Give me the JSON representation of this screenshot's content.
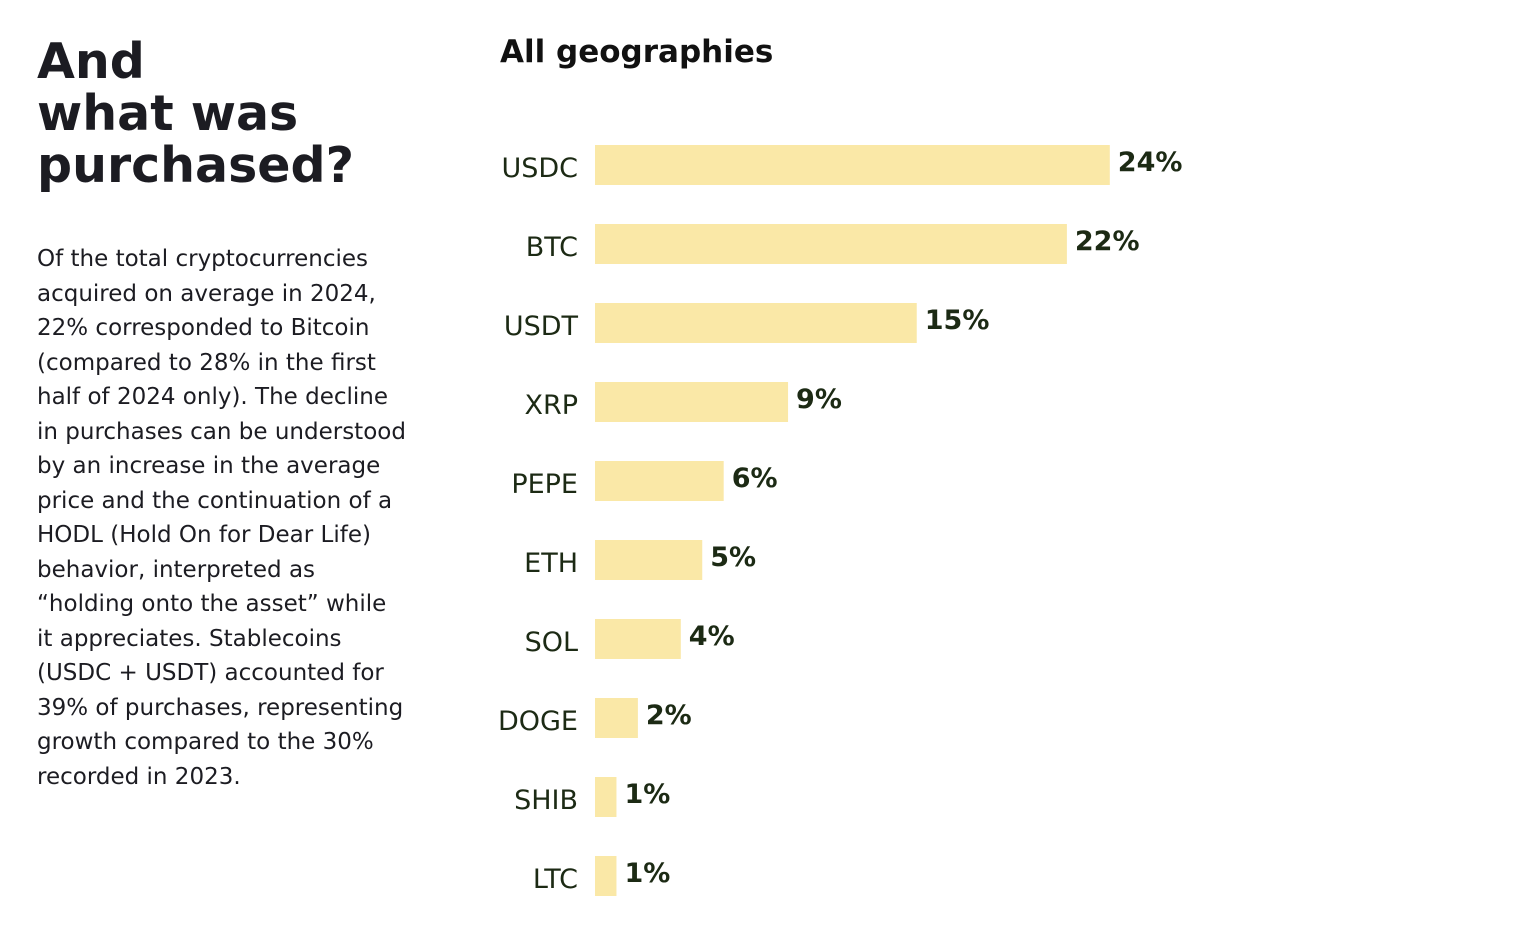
{
  "intro": {
    "heading": "And\nwhat was\npurchased?",
    "body": "Of the total cryptocurrencies acquired on average in 2024, 22% corresponded to Bitcoin (compared to 28% in the first half of 2024 only). The decline in purchases can be understood by an increase in the average price and the continuation of a HODL (Hold On for Dear Life) behavior, interpreted as “holding onto the asset” while it appreciates. Stablecoins (USDC + USDT) accounted for 39% of purchases, representing growth compared to the 30% recorded in 2023."
  },
  "chart_data": {
    "type": "bar",
    "orientation": "horizontal",
    "title": "All geographies",
    "categories": [
      "USDC",
      "BTC",
      "USDT",
      "XRP",
      "PEPE",
      "ETH",
      "SOL",
      "DOGE",
      "SHIB",
      "LTC"
    ],
    "values": [
      24,
      22,
      15,
      9,
      6,
      5,
      4,
      2,
      1,
      1
    ],
    "data_labels": [
      "24%",
      "22%",
      "15%",
      "9%",
      "6%",
      "5%",
      "4%",
      "2%",
      "1%",
      "1%"
    ],
    "unit": "%",
    "bar_color": "#fae8a7",
    "label_color": "#1c2a14",
    "grid": false,
    "legend": "none"
  }
}
